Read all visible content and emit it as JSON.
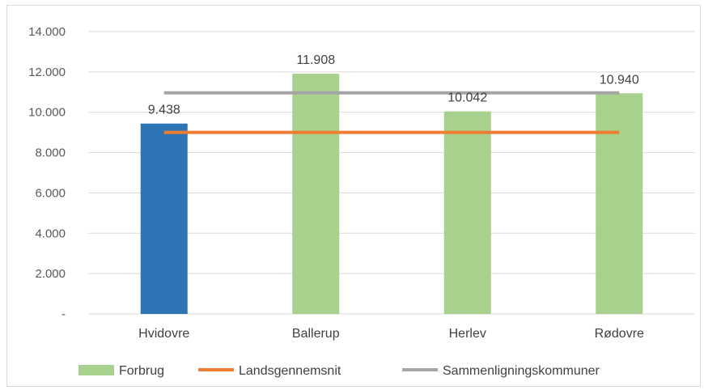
{
  "chart_data": {
    "type": "bar",
    "categories": [
      "Hvidovre",
      "Ballerup",
      "Herlev",
      "Rødovre"
    ],
    "series": [
      {
        "name": "Forbrug",
        "type": "bar",
        "values": [
          9438,
          11908,
          10042,
          10940
        ],
        "labels": [
          "9.438",
          "11.908",
          "10.042",
          "10.940"
        ],
        "colors": [
          "#2e75b6",
          "#a9d18e",
          "#a9d18e",
          "#a9d18e"
        ]
      },
      {
        "name": "Landsgennemsnit",
        "type": "line",
        "value": 9000,
        "color": "#ed7d31"
      },
      {
        "name": "Sammenligningskommuner",
        "type": "line",
        "value": 10960,
        "color": "#a5a5a5"
      }
    ],
    "ylim": [
      0,
      14000
    ],
    "yticks": [
      0,
      2000,
      4000,
      6000,
      8000,
      10000,
      12000,
      14000
    ],
    "ytick_labels": [
      "-",
      "2.000",
      "4.000",
      "6.000",
      "8.000",
      "10.000",
      "12.000",
      "14.000"
    ],
    "grid": true,
    "legend": {
      "position": "bottom",
      "items": [
        {
          "label": "Forbrug",
          "color": "#a9d18e",
          "marker": "rect"
        },
        {
          "label": "Landsgennemsnit",
          "color": "#ed7d31",
          "marker": "line"
        },
        {
          "label": "Sammenligningskommuner",
          "color": "#a5a5a5",
          "marker": "line"
        }
      ]
    },
    "title": "",
    "xlabel": "",
    "ylabel": ""
  }
}
